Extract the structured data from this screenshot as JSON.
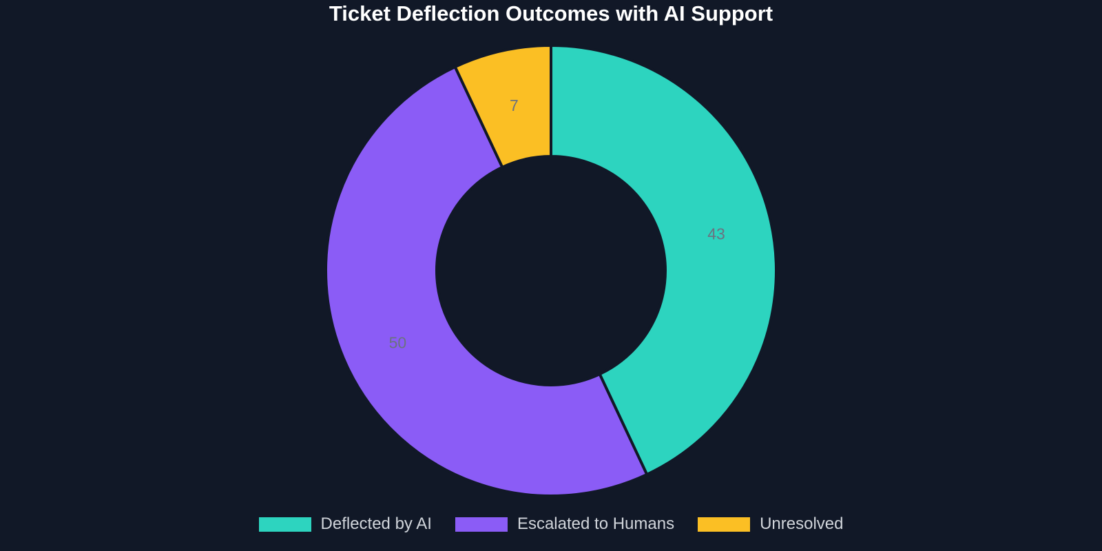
{
  "chart_data": {
    "type": "pie",
    "variant": "donut",
    "title": "Ticket Deflection Outcomes with AI Support",
    "categories": [
      "Deflected by AI",
      "Escalated to Humans",
      "Unresolved"
    ],
    "values": [
      43,
      50,
      7
    ],
    "colors": [
      "#2dd4bf",
      "#8b5cf6",
      "#fbbf24"
    ],
    "data_labels": [
      "43",
      "50",
      "7"
    ],
    "legend_position": "bottom",
    "background": "#111827"
  }
}
